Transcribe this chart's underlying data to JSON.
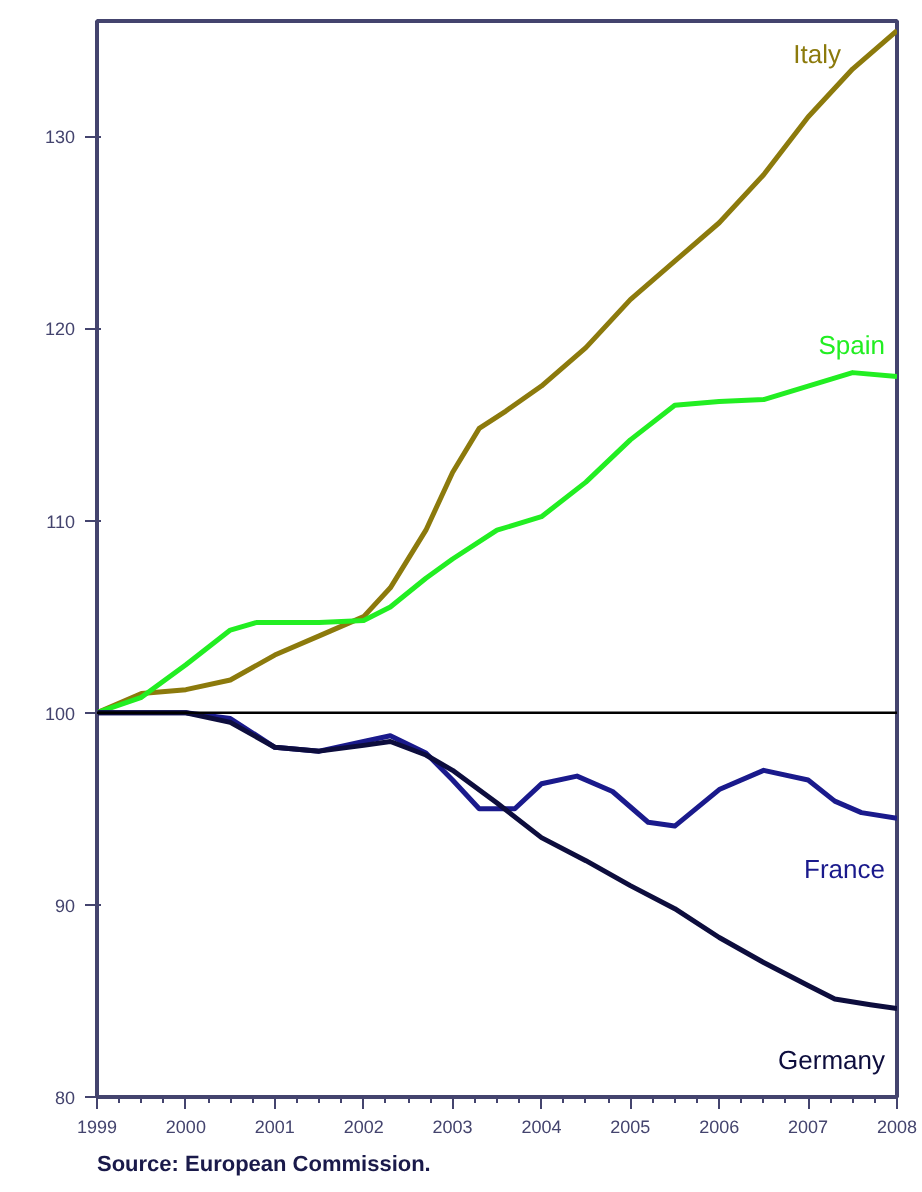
{
  "chart_data": {
    "type": "line",
    "xlim": [
      1999,
      2008
    ],
    "ylim": [
      80,
      136
    ],
    "xticks": [
      1999,
      2000,
      2001,
      2002,
      2003,
      2004,
      2005,
      2006,
      2007,
      2008
    ],
    "yticks": [
      80,
      90,
      100,
      110,
      120,
      130
    ],
    "grid": false,
    "marker": "none",
    "line_style": "solid",
    "series": [
      {
        "name": "Italy",
        "color": "#8c7a0c",
        "x": [
          1999,
          1999.5,
          2000,
          2000.5,
          2001,
          2001.5,
          2002,
          2002.3,
          2002.7,
          2003,
          2003.3,
          2003.6,
          2004,
          2004.5,
          2005,
          2005.5,
          2006,
          2006.5,
          2007,
          2007.5,
          2008
        ],
        "values": [
          100,
          101,
          101.2,
          101.7,
          103,
          104,
          105,
          106.5,
          109.5,
          112.5,
          114.8,
          115.7,
          117,
          119,
          121.5,
          123.5,
          125.5,
          128,
          131,
          133.5,
          135.5
        ]
      },
      {
        "name": "Spain",
        "color": "#22ee22",
        "x": [
          1999,
          1999.5,
          2000,
          2000.5,
          2000.8,
          2001.5,
          2002,
          2002.3,
          2002.7,
          2003,
          2003.5,
          2004,
          2004.5,
          2005,
          2005.5,
          2006,
          2006.5,
          2007,
          2007.5,
          2008
        ],
        "values": [
          100,
          100.8,
          102.5,
          104.3,
          104.7,
          104.7,
          104.8,
          105.5,
          107,
          108,
          109.5,
          110.2,
          112,
          114.2,
          116,
          116.2,
          116.3,
          117,
          117.7,
          117.5
        ]
      },
      {
        "name": "France",
        "color": "#1a1a8c",
        "x": [
          1999,
          2000,
          2000.5,
          2001,
          2001.5,
          2002,
          2002.3,
          2002.7,
          2003,
          2003.3,
          2003.7,
          2004,
          2004.4,
          2004.8,
          2005.2,
          2005.5,
          2006,
          2006.5,
          2007,
          2007.3,
          2007.6,
          2008
        ],
        "values": [
          100,
          100,
          99.7,
          98.2,
          98,
          98.5,
          98.8,
          97.9,
          96.5,
          95,
          95,
          96.3,
          96.7,
          95.9,
          94.3,
          94.1,
          96,
          97,
          96.5,
          95.4,
          94.8,
          94.5
        ]
      },
      {
        "name": "Germany",
        "color": "#0d0d3d",
        "x": [
          1999,
          2000,
          2000.5,
          2001,
          2001.5,
          2002,
          2002.3,
          2002.7,
          2003,
          2003.5,
          2004,
          2004.5,
          2005,
          2005.5,
          2006,
          2006.5,
          2007,
          2007.3,
          2007.7,
          2008
        ],
        "values": [
          100,
          100,
          99.5,
          98.2,
          98,
          98.3,
          98.5,
          97.8,
          97,
          95.3,
          93.5,
          92.3,
          91,
          89.8,
          88.3,
          87,
          85.8,
          85.1,
          84.8,
          84.6
        ]
      }
    ],
    "ref_lines": [
      {
        "axis": "y",
        "value": 100,
        "color": "#000000"
      }
    ],
    "annotations": [
      "Source: European Commission."
    ]
  }
}
